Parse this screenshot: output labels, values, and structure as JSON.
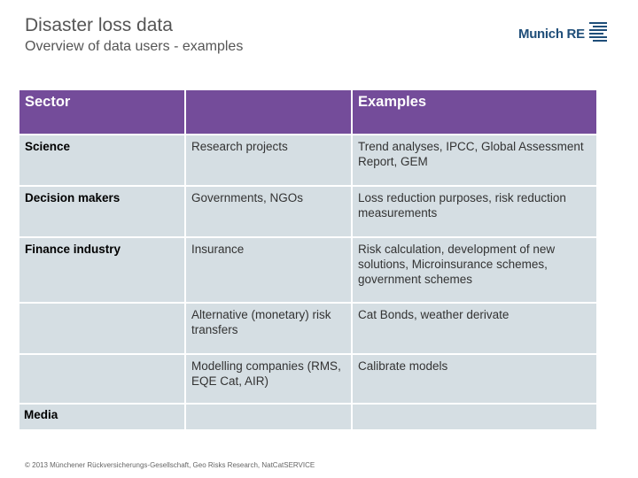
{
  "header": {
    "title": "Disaster loss data",
    "subtitle": "Overview of data users - examples",
    "logo_text": "Munich RE"
  },
  "table": {
    "headers": [
      "Sector",
      "",
      "Examples"
    ],
    "rows": [
      {
        "sector": "Science",
        "users": "Research projects",
        "examples": "Trend analyses, IPCC, Global Assessment Report, GEM"
      },
      {
        "sector": "Decision makers",
        "users": "Governments, NGOs",
        "examples": "Loss reduction purposes, risk reduction measurements"
      },
      {
        "sector": "Finance industry",
        "users": "Insurance",
        "examples": "Risk calculation, development of new solutions, Microinsurance schemes, government schemes"
      },
      {
        "sector": "",
        "users": "Alternative (monetary) risk transfers",
        "examples": "Cat Bonds, weather derivate"
      },
      {
        "sector": "",
        "users": "Modelling companies (RMS, EQE Cat, AIR)",
        "examples": "Calibrate models"
      },
      {
        "sector": "Media",
        "users": "",
        "examples": ""
      }
    ]
  },
  "footer": "© 2013 Münchener Rückversicherungs-Gesellschaft, Geo Risks Research, NatCatSERVICE",
  "colors": {
    "header_fill": "#744c9a",
    "cell_fill": "#d5dee3",
    "logo_blue": "#1f4e79"
  }
}
